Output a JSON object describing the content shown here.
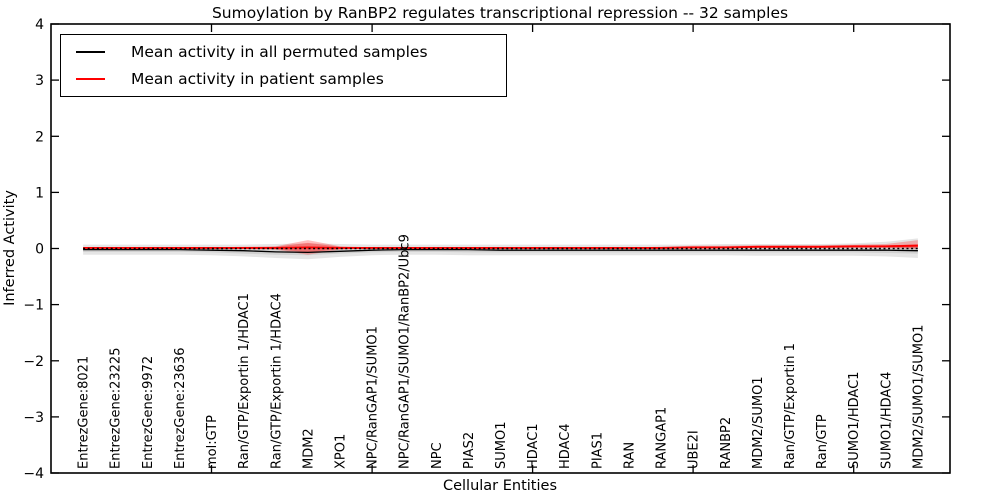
{
  "figure": {
    "title": "Sumoylation by RanBP2 regulates transcriptional repression -- 32 samples"
  },
  "legend": {
    "entries": [
      {
        "label": "Mean activity in all permuted samples",
        "color": "#000000"
      },
      {
        "label": "Mean activity in patient samples",
        "color": "#ff0000"
      }
    ]
  },
  "chart_data": {
    "type": "line",
    "title": "Sumoylation by RanBP2 regulates transcriptional repression -- 32 samples",
    "xlabel": "Cellular Entities",
    "ylabel": "Inferred Activity",
    "ylim": [
      -4,
      4
    ],
    "yticks": [
      4,
      3,
      2,
      1,
      0,
      -1,
      -2,
      -3,
      -4
    ],
    "xticks_numeric": [
      5,
      10,
      15,
      20,
      25
    ],
    "grid": false,
    "legend_position": "upper left",
    "categories": [
      "EntrezGene:8021",
      "EntrezGene:23225",
      "EntrezGene:9972",
      "EntrezGene:23636",
      "mol:GTP",
      "Ran/GTP/Exportin 1/HDAC1",
      "Ran/GTP/Exportin 1/HDAC4",
      "MDM2",
      "XPO1",
      "NPC/RanGAP1/SUMO1",
      "NPC/RanGAP1/SUMO1/RanBP2/Ubc9",
      "NPC",
      "PIAS2",
      "SUMO1",
      "HDAC1",
      "HDAC4",
      "PIAS1",
      "RAN",
      "RANGAP1",
      "UBE2I",
      "RANBP2",
      "MDM2/SUMO1",
      "Ran/GTP/Exportin 1",
      "Ran/GTP",
      "SUMO1/HDAC1",
      "SUMO1/HDAC4",
      "MDM2/SUMO1/SUMO1"
    ],
    "series": [
      {
        "name": "Mean activity in all permuted samples",
        "color": "#000000",
        "values": [
          -0.02,
          -0.02,
          -0.02,
          -0.02,
          -0.03,
          -0.04,
          -0.06,
          -0.07,
          -0.05,
          -0.03,
          -0.02,
          -0.02,
          -0.02,
          -0.03,
          -0.03,
          -0.03,
          -0.03,
          -0.03,
          -0.03,
          -0.03,
          -0.03,
          -0.03,
          -0.03,
          -0.03,
          -0.03,
          -0.03,
          -0.04
        ]
      },
      {
        "name": "Mean activity in patient samples",
        "color": "#ff0000",
        "values": [
          0.01,
          0.01,
          0.01,
          0.01,
          0.01,
          0.01,
          0.01,
          0.02,
          0.01,
          0.01,
          0.01,
          0.01,
          0.01,
          0.01,
          0.01,
          0.01,
          0.01,
          0.01,
          0.01,
          0.02,
          0.02,
          0.03,
          0.03,
          0.03,
          0.04,
          0.04,
          0.05
        ]
      }
    ],
    "bands": [
      {
        "name": "permuted-std",
        "color": "#888888",
        "opacity": 0.22,
        "upper": [
          0.07,
          0.07,
          0.07,
          0.07,
          0.07,
          0.07,
          0.08,
          0.09,
          0.08,
          0.07,
          0.07,
          0.07,
          0.07,
          0.07,
          0.07,
          0.07,
          0.07,
          0.07,
          0.07,
          0.07,
          0.08,
          0.08,
          0.08,
          0.08,
          0.09,
          0.12,
          0.18
        ],
        "lower": [
          -0.11,
          -0.11,
          -0.11,
          -0.11,
          -0.12,
          -0.14,
          -0.17,
          -0.19,
          -0.15,
          -0.12,
          -0.11,
          -0.11,
          -0.12,
          -0.12,
          -0.12,
          -0.12,
          -0.12,
          -0.12,
          -0.12,
          -0.12,
          -0.12,
          -0.13,
          -0.13,
          -0.13,
          -0.13,
          -0.14,
          -0.17
        ]
      },
      {
        "name": "permuted-sem",
        "color": "#888888",
        "opacity": 0.22,
        "upper": [
          0.02,
          0.02,
          0.02,
          0.02,
          0.02,
          0.02,
          0.02,
          0.02,
          0.02,
          0.02,
          0.02,
          0.02,
          0.02,
          0.02,
          0.02,
          0.02,
          0.02,
          0.02,
          0.02,
          0.02,
          0.02,
          0.02,
          0.02,
          0.02,
          0.02,
          0.03,
          0.04
        ],
        "lower": [
          -0.06,
          -0.06,
          -0.06,
          -0.06,
          -0.07,
          -0.09,
          -0.11,
          -0.12,
          -0.09,
          -0.07,
          -0.06,
          -0.06,
          -0.07,
          -0.07,
          -0.07,
          -0.07,
          -0.07,
          -0.07,
          -0.07,
          -0.07,
          -0.07,
          -0.07,
          -0.07,
          -0.07,
          -0.07,
          -0.08,
          -0.09
        ]
      },
      {
        "name": "patient-std",
        "color": "#ff0000",
        "opacity": 0.25,
        "upper": [
          0.02,
          0.02,
          0.02,
          0.02,
          0.02,
          0.03,
          0.04,
          0.15,
          0.04,
          0.02,
          0.02,
          0.02,
          0.02,
          0.02,
          0.02,
          0.02,
          0.02,
          0.02,
          0.03,
          0.05,
          0.05,
          0.06,
          0.06,
          0.06,
          0.07,
          0.08,
          0.15
        ],
        "lower": [
          0.0,
          0.0,
          0.0,
          0.0,
          0.0,
          -0.01,
          -0.02,
          -0.11,
          -0.02,
          0.0,
          0.0,
          0.0,
          0.0,
          0.0,
          0.0,
          0.0,
          0.0,
          0.0,
          0.0,
          0.0,
          0.0,
          0.01,
          0.01,
          0.01,
          0.01,
          0.01,
          -0.01
        ]
      },
      {
        "name": "patient-sem",
        "color": "#ff0000",
        "opacity": 0.3,
        "upper": [
          0.015,
          0.015,
          0.015,
          0.015,
          0.015,
          0.02,
          0.03,
          0.1,
          0.03,
          0.015,
          0.015,
          0.015,
          0.015,
          0.015,
          0.015,
          0.015,
          0.015,
          0.015,
          0.02,
          0.03,
          0.03,
          0.04,
          0.04,
          0.04,
          0.05,
          0.05,
          0.08
        ],
        "lower": [
          0.005,
          0.005,
          0.005,
          0.005,
          0.005,
          0.0,
          -0.01,
          -0.07,
          -0.01,
          0.005,
          0.005,
          0.005,
          0.005,
          0.005,
          0.005,
          0.005,
          0.005,
          0.005,
          0.005,
          0.01,
          0.01,
          0.015,
          0.015,
          0.015,
          0.02,
          0.02,
          0.01
        ]
      }
    ],
    "zero_line": {
      "y": 0,
      "style": "dotted",
      "color": "#000000"
    }
  }
}
